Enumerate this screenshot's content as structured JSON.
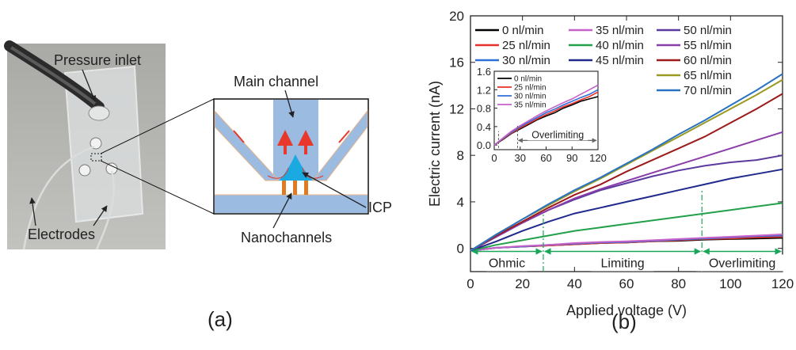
{
  "panel_a": {
    "label": "(a)",
    "photo_labels": {
      "pressure_inlet": "Pressure inlet",
      "electrodes": "Electrodes"
    },
    "schematic_labels": {
      "main_channel": "Main channel",
      "icp": "ICP",
      "nanochannels": "Nanochannels"
    }
  },
  "panel_b": {
    "label": "(b)"
  },
  "colors": {
    "channel_blue": "#9bbbe0",
    "flow_arrow": "#e8372b",
    "icp_cyan": "#1aa9e0",
    "nanochannel_orange": "#e07b22",
    "regime_green": "#1aa65a"
  },
  "chart_data": [
    {
      "type": "line",
      "title": "",
      "xlabel": "Applied voltage (V)",
      "ylabel": "Electric current (nA)",
      "xlim": [
        0,
        120
      ],
      "ylim": [
        -2,
        20
      ],
      "xticks": [
        0,
        20,
        40,
        60,
        80,
        100,
        120
      ],
      "yticks": [
        0,
        4,
        8,
        12,
        16,
        20
      ],
      "grid": false,
      "legend": "top, three columns",
      "x": [
        0,
        10,
        20,
        30,
        40,
        50,
        60,
        70,
        80,
        90,
        100,
        110,
        120
      ],
      "series": [
        {
          "name": "0 nl/min",
          "color": "#000000",
          "values": [
            -0.2,
            0.05,
            0.15,
            0.25,
            0.35,
            0.45,
            0.5,
            0.6,
            0.65,
            0.75,
            0.8,
            0.85,
            0.9
          ]
        },
        {
          "name": "25 nl/min",
          "color": "#e8312a",
          "values": [
            -0.2,
            0.05,
            0.15,
            0.25,
            0.35,
            0.45,
            0.5,
            0.6,
            0.7,
            0.8,
            0.85,
            0.95,
            1.0
          ]
        },
        {
          "name": "30 nl/min",
          "color": "#2f6fd6",
          "values": [
            -0.2,
            0.05,
            0.15,
            0.3,
            0.4,
            0.5,
            0.55,
            0.65,
            0.75,
            0.85,
            0.95,
            1.05,
            1.1
          ]
        },
        {
          "name": "35 nl/min",
          "color": "#c561c9",
          "values": [
            -0.2,
            0.05,
            0.2,
            0.3,
            0.45,
            0.55,
            0.6,
            0.7,
            0.8,
            0.9,
            1.0,
            1.1,
            1.2
          ]
        },
        {
          "name": "40 nl/min",
          "color": "#22a04a",
          "values": [
            -0.2,
            0.3,
            0.7,
            1.1,
            1.5,
            1.8,
            2.1,
            2.4,
            2.7,
            3.0,
            3.3,
            3.6,
            3.9
          ]
        },
        {
          "name": "45 nl/min",
          "color": "#1f2a8c",
          "values": [
            -0.2,
            0.6,
            1.5,
            2.3,
            3.0,
            3.5,
            4.0,
            4.5,
            5.0,
            5.5,
            6.0,
            6.4,
            6.8
          ]
        },
        {
          "name": "50 nl/min",
          "color": "#5b3aa0",
          "values": [
            -0.2,
            1.0,
            2.2,
            3.3,
            4.2,
            5.0,
            5.6,
            6.2,
            6.7,
            7.1,
            7.4,
            7.6,
            8.0
          ]
        },
        {
          "name": "55 nl/min",
          "color": "#8a3eaa",
          "values": [
            -0.2,
            1.0,
            2.2,
            3.3,
            4.3,
            5.1,
            5.8,
            6.5,
            7.2,
            7.9,
            8.6,
            9.3,
            10.0
          ]
        },
        {
          "name": "60 nl/min",
          "color": "#9c1a1a",
          "values": [
            -0.2,
            1.1,
            2.3,
            3.5,
            4.6,
            5.5,
            6.6,
            7.6,
            8.6,
            9.6,
            10.8,
            12.0,
            13.3
          ]
        },
        {
          "name": "65 nl/min",
          "color": "#9a9a22",
          "values": [
            -0.2,
            1.2,
            2.5,
            3.7,
            4.9,
            6.0,
            7.2,
            8.4,
            9.6,
            10.8,
            12.0,
            13.2,
            14.5
          ]
        },
        {
          "name": "70 nl/min",
          "color": "#2a73c2",
          "values": [
            -0.2,
            1.2,
            2.5,
            3.8,
            5.0,
            6.1,
            7.3,
            8.5,
            9.8,
            11.0,
            12.3,
            13.6,
            15.0
          ]
        }
      ],
      "annotations": {
        "ohmic": "Ohmic",
        "limiting": "Limiting",
        "overlimiting": "Overlimiting"
      },
      "regime_boundaries_x": [
        28,
        89
      ],
      "regime_label_y": -0.4
    },
    {
      "type": "line",
      "title": "",
      "xlabel": "",
      "ylabel": "",
      "xlim": [
        0,
        120
      ],
      "ylim": [
        -0.1,
        1.6
      ],
      "xticks": [
        0,
        30,
        60,
        90,
        120
      ],
      "yticks": [
        0.0,
        0.4,
        0.8,
        1.2,
        1.6
      ],
      "ytick_labels": [
        "0.0",
        "0.4",
        "0.8",
        "1.2",
        "1.6"
      ],
      "grid": false,
      "legend": "top-left",
      "x": [
        0,
        10,
        20,
        30,
        40,
        50,
        60,
        70,
        80,
        90,
        100,
        110,
        120
      ],
      "series": [
        {
          "name": "0 nl/min",
          "color": "#000000",
          "values": [
            0.0,
            0.12,
            0.25,
            0.35,
            0.45,
            0.55,
            0.63,
            0.7,
            0.8,
            0.87,
            0.95,
            1.0,
            1.05
          ]
        },
        {
          "name": "25 nl/min",
          "color": "#e8312a",
          "values": [
            0.0,
            0.13,
            0.26,
            0.37,
            0.47,
            0.57,
            0.66,
            0.74,
            0.83,
            0.9,
            0.98,
            1.05,
            1.15
          ]
        },
        {
          "name": "30 nl/min",
          "color": "#2f6fd6",
          "values": [
            0.0,
            0.14,
            0.28,
            0.4,
            0.5,
            0.6,
            0.7,
            0.78,
            0.87,
            0.95,
            1.03,
            1.1,
            1.2
          ]
        },
        {
          "name": "35 nl/min",
          "color": "#c561c9",
          "values": [
            0.0,
            0.15,
            0.3,
            0.42,
            0.53,
            0.64,
            0.74,
            0.83,
            0.92,
            1.0,
            1.1,
            1.2,
            1.3
          ]
        }
      ],
      "annotations": {
        "overlimiting": "Overlimiting"
      },
      "regime_boundaries_x": [
        5,
        27
      ]
    }
  ]
}
